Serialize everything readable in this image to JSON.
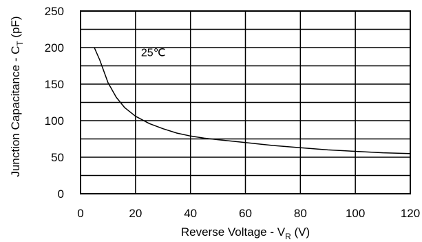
{
  "chart_data": {
    "type": "line",
    "title": "",
    "xlabel": {
      "main": "Reverse Voltage - V",
      "sub": "R",
      "unit": " (V)"
    },
    "ylabel": {
      "main": "Junction Capacitance - C",
      "sub": "T",
      "unit": " (pF)"
    },
    "xlim": [
      0,
      120
    ],
    "ylim": [
      0,
      250
    ],
    "x_ticks": [
      0,
      20,
      40,
      60,
      80,
      100,
      120
    ],
    "y_ticks": [
      0,
      50,
      100,
      150,
      200,
      250
    ],
    "x_tick_labels": [
      "0",
      "20",
      "40",
      "60",
      "80",
      "100",
      "120"
    ],
    "y_tick_labels": [
      "0",
      "50",
      "100",
      "150",
      "200",
      "250"
    ],
    "grid": true,
    "grid_x_step": 20,
    "grid_y_step": 25,
    "annotation": "25℃",
    "annotation_x": 22,
    "annotation_y": 188,
    "line_color": "#000000",
    "grid_color": "#000000",
    "series": [
      {
        "x": [
          5,
          7,
          10,
          13,
          16,
          20,
          25,
          30,
          35,
          40,
          45,
          50,
          60,
          70,
          80,
          90,
          100,
          110,
          120
        ],
        "y": [
          200,
          183,
          152,
          132,
          118,
          106,
          96,
          89,
          83,
          79,
          76,
          74,
          70,
          66,
          63,
          60,
          58,
          56,
          55
        ]
      }
    ]
  }
}
